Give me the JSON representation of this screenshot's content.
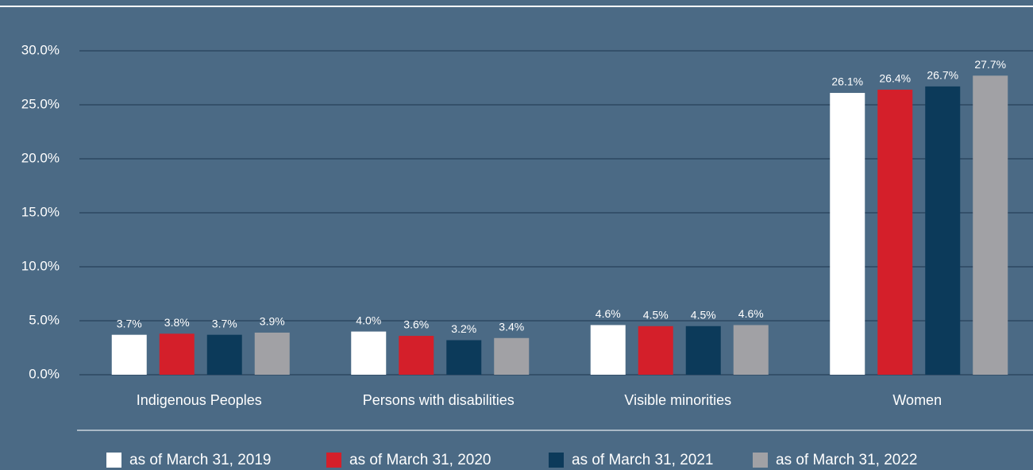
{
  "chart_data": {
    "type": "bar",
    "categories": [
      "Indigenous Peoples",
      "Persons with disabilities",
      "Visible minorities",
      "Women"
    ],
    "series": [
      {
        "name": "as of March 31, 2019",
        "color": "#ffffff",
        "values": [
          3.7,
          4.0,
          4.6,
          26.1
        ],
        "value_labels": [
          "3.7%",
          "4.0%",
          "4.6%",
          "26.1%"
        ]
      },
      {
        "name": "as of March 31, 2020",
        "color": "#d41f2a",
        "values": [
          3.8,
          3.6,
          4.5,
          26.4
        ],
        "value_labels": [
          "3.8%",
          "3.6%",
          "4.5%",
          "26.4%"
        ]
      },
      {
        "name": "as of March 31, 2021",
        "color": "#0c3a5a",
        "values": [
          3.7,
          3.2,
          4.5,
          26.7
        ],
        "value_labels": [
          "3.7%",
          "3.2%",
          "4.5%",
          "26.7%"
        ]
      },
      {
        "name": "as of March 31, 2022",
        "color": "#a1a1a5",
        "values": [
          3.9,
          3.4,
          4.6,
          27.7
        ],
        "value_labels": [
          "3.9%",
          "3.4%",
          "4.6%",
          "27.7%"
        ]
      }
    ],
    "ylim": [
      0,
      30
    ],
    "yticks": [
      {
        "value": 0,
        "label": "0.0%"
      },
      {
        "value": 5,
        "label": "5.0%"
      },
      {
        "value": 10,
        "label": "10.0%"
      },
      {
        "value": 15,
        "label": "15.0%"
      },
      {
        "value": 20,
        "label": "20.0%"
      },
      {
        "value": 25,
        "label": "25.0%"
      },
      {
        "value": 30,
        "label": "30.0%"
      }
    ],
    "grid": true,
    "legend": "bottom"
  }
}
